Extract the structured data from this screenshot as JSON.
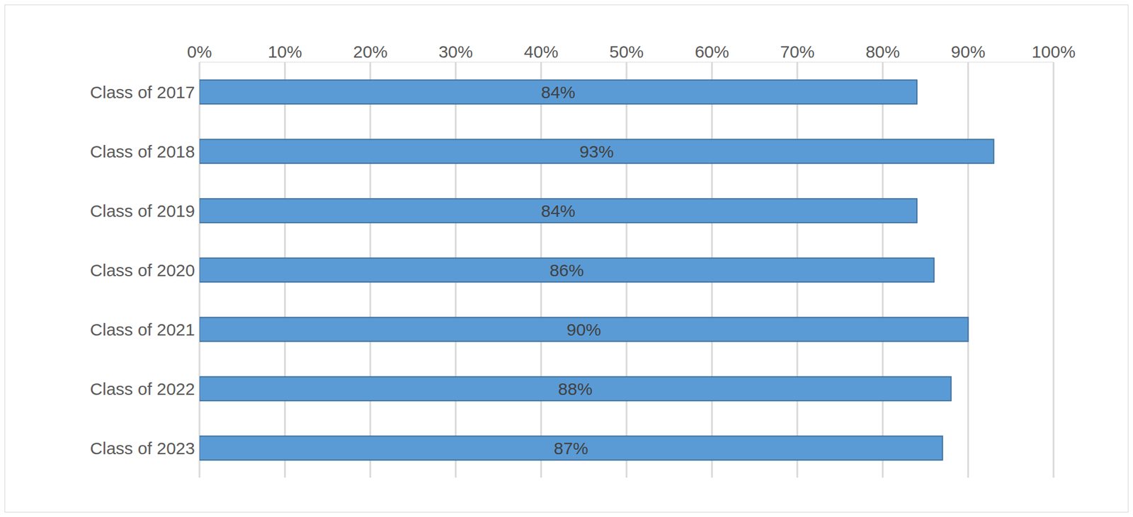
{
  "chart_data": {
    "type": "bar",
    "orientation": "horizontal",
    "categories": [
      "Class of 2017",
      "Class of 2018",
      "Class of 2019",
      "Class of 2020",
      "Class of 2021",
      "Class of 2022",
      "Class of 2023"
    ],
    "values": [
      84,
      93,
      84,
      86,
      90,
      88,
      87
    ],
    "value_labels": [
      "84%",
      "93%",
      "84%",
      "86%",
      "90%",
      "88%",
      "87%"
    ],
    "data_labels": true,
    "color": "#5b9bd5",
    "xlim": [
      0,
      100
    ],
    "xticks": [
      {
        "value": 0,
        "label": "0%"
      },
      {
        "value": 10,
        "label": "10%"
      },
      {
        "value": 20,
        "label": "20%"
      },
      {
        "value": 30,
        "label": "30%"
      },
      {
        "value": 40,
        "label": "40%"
      },
      {
        "value": 50,
        "label": "50%"
      },
      {
        "value": 60,
        "label": "60%"
      },
      {
        "value": 70,
        "label": "70%"
      },
      {
        "value": 80,
        "label": "80%"
      },
      {
        "value": 90,
        "label": "90%"
      },
      {
        "value": 100,
        "label": "100%"
      }
    ],
    "grid": true
  }
}
